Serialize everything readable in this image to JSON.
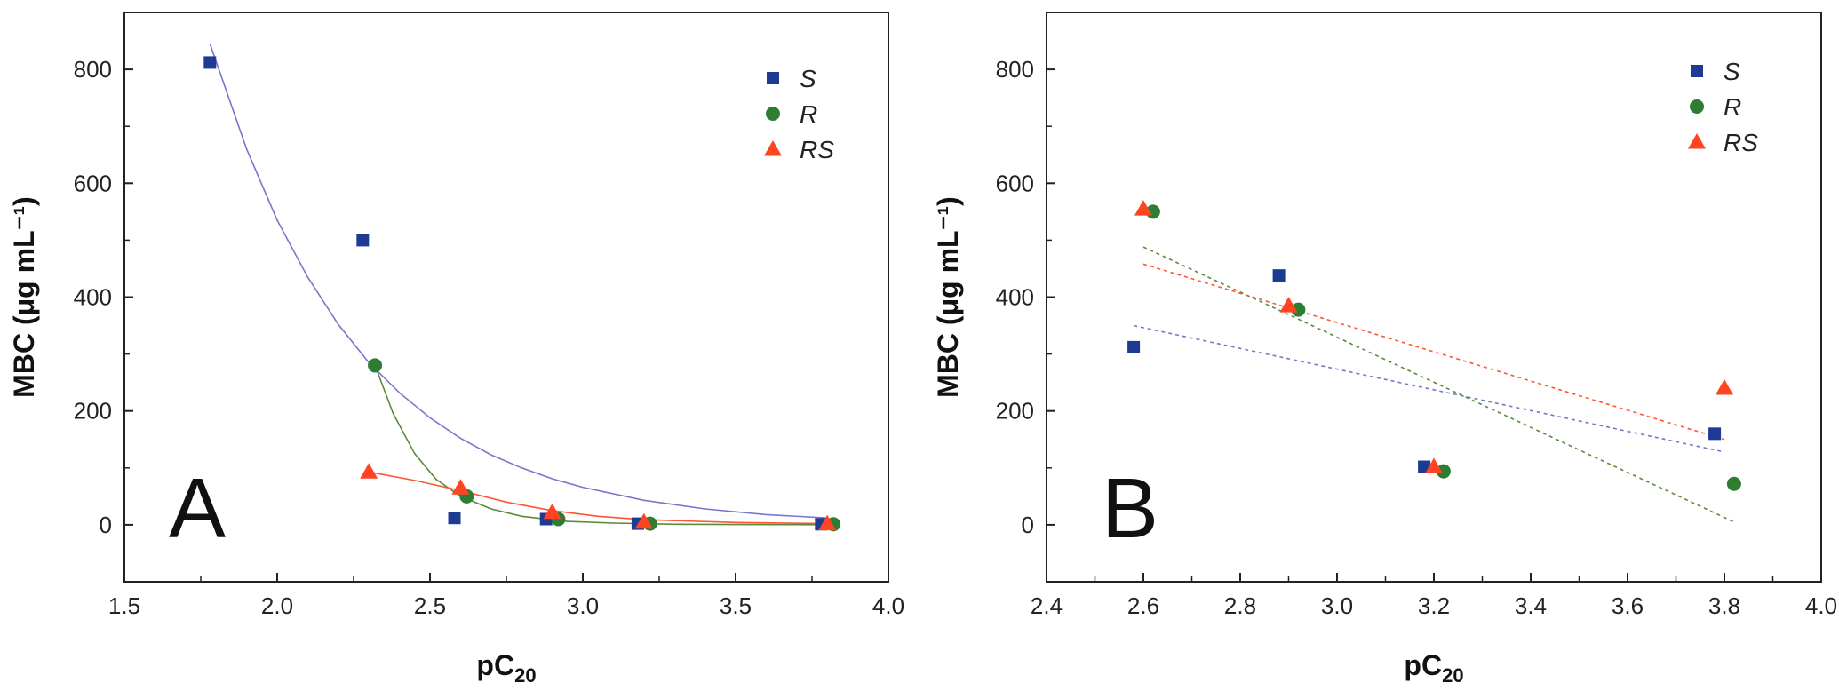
{
  "colors": {
    "S": "#1f3a93",
    "R": "#2e7d32",
    "RS": "#ff4422",
    "fitS": "#7777cc",
    "fitR": "#5a8a3a",
    "fitRS": "#ff5533"
  },
  "chart_data": [
    {
      "type": "scatter",
      "panel_label": "A",
      "xlabel_main": "pC",
      "xlabel_sub": "20",
      "ylabel": "MBC (μg mL⁻¹)",
      "xlim": [
        1.5,
        4.0
      ],
      "ylim": [
        -100,
        900
      ],
      "xticks": [
        1.5,
        2.0,
        2.5,
        3.0,
        3.5,
        4.0
      ],
      "xtick_labels": [
        "1.5",
        "2.0",
        "2.5",
        "3.0",
        "3.5",
        "4.0"
      ],
      "yticks": [
        0,
        200,
        400,
        600,
        800
      ],
      "ytick_labels": [
        "0",
        "200",
        "400",
        "600",
        "800"
      ],
      "legend": [
        "S",
        "R",
        "RS"
      ],
      "series": [
        {
          "name": "S",
          "marker": "square",
          "x": [
            1.78,
            2.28,
            2.58,
            2.88,
            3.18,
            3.78
          ],
          "y": [
            812,
            500,
            12,
            10,
            2,
            1
          ]
        },
        {
          "name": "R",
          "marker": "circle",
          "x": [
            2.32,
            2.62,
            2.92,
            3.22,
            3.82
          ],
          "y": [
            280,
            50,
            10,
            2,
            1
          ]
        },
        {
          "name": "RS",
          "marker": "triangle",
          "x": [
            2.3,
            2.6,
            2.9,
            3.2,
            3.8
          ],
          "y": [
            93,
            65,
            22,
            5,
            2
          ]
        }
      ],
      "fits": [
        {
          "name": "S",
          "x": [
            1.78,
            1.9,
            2.0,
            2.1,
            2.2,
            2.3,
            2.4,
            2.5,
            2.6,
            2.7,
            2.8,
            2.9,
            3.0,
            3.2,
            3.4,
            3.6,
            3.8
          ],
          "y": [
            845,
            660,
            535,
            435,
            352,
            285,
            232,
            188,
            152,
            123,
            100,
            81,
            66,
            43,
            28,
            18,
            12
          ]
        },
        {
          "name": "R",
          "x": [
            2.32,
            2.38,
            2.45,
            2.52,
            2.6,
            2.7,
            2.8,
            2.95,
            3.1,
            3.3,
            3.5,
            3.82
          ],
          "y": [
            280,
            195,
            125,
            80,
            50,
            28,
            15,
            6,
            3,
            1,
            0.5,
            0.2
          ]
        },
        {
          "name": "RS",
          "x": [
            2.3,
            2.45,
            2.6,
            2.75,
            2.9,
            3.05,
            3.2,
            3.5,
            3.8
          ],
          "y": [
            93,
            78,
            60,
            40,
            25,
            15,
            9,
            4,
            2
          ]
        }
      ]
    },
    {
      "type": "scatter",
      "panel_label": "B",
      "xlabel_main": "pC",
      "xlabel_sub": "20",
      "ylabel": "MBC (μg mL⁻¹)",
      "xlim": [
        2.4,
        4.0
      ],
      "ylim": [
        -100,
        900
      ],
      "xticks": [
        2.4,
        2.6,
        2.8,
        3.0,
        3.2,
        3.4,
        3.6,
        3.8,
        4.0
      ],
      "xtick_labels": [
        "2.4",
        "2.6",
        "2.8",
        "3.0",
        "3.2",
        "3.4",
        "3.6",
        "3.8",
        "4.0"
      ],
      "yticks": [
        0,
        200,
        400,
        600,
        800
      ],
      "ytick_labels": [
        "0",
        "200",
        "400",
        "600",
        "800"
      ],
      "legend": [
        "S",
        "R",
        "RS"
      ],
      "series": [
        {
          "name": "S",
          "marker": "square",
          "x": [
            2.58,
            2.88,
            3.18,
            3.78
          ],
          "y": [
            312,
            438,
            102,
            160
          ]
        },
        {
          "name": "R",
          "marker": "circle",
          "x": [
            2.62,
            2.92,
            3.22,
            3.82
          ],
          "y": [
            550,
            378,
            94,
            72
          ]
        },
        {
          "name": "RS",
          "marker": "triangle",
          "x": [
            2.6,
            2.9,
            3.2,
            3.8
          ],
          "y": [
            555,
            385,
            102,
            240
          ]
        }
      ],
      "fits": [
        {
          "name": "S",
          "x": [
            2.58,
            3.8
          ],
          "y": [
            350,
            128
          ]
        },
        {
          "name": "R",
          "x": [
            2.6,
            3.82
          ],
          "y": [
            488,
            5
          ]
        },
        {
          "name": "RS",
          "x": [
            2.6,
            3.8
          ],
          "y": [
            458,
            150
          ]
        }
      ]
    }
  ]
}
